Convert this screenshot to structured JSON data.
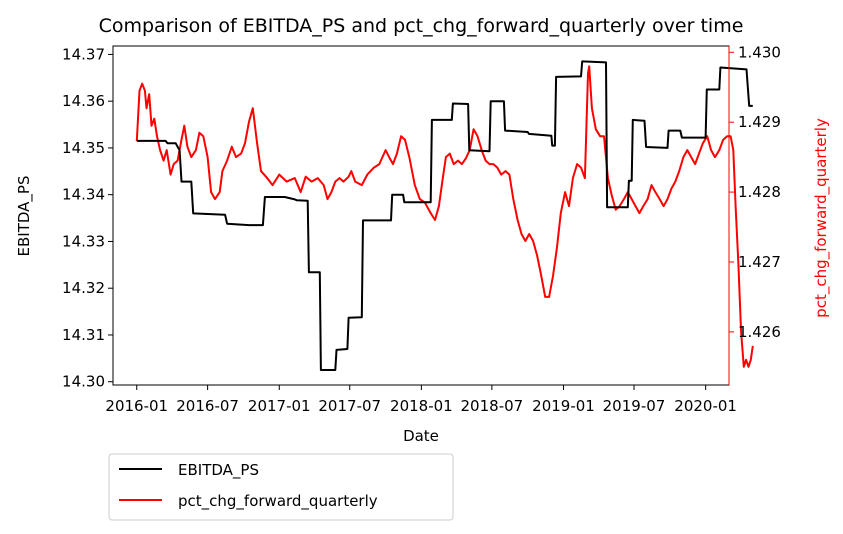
{
  "chart_data": {
    "type": "line",
    "title": "Comparison of EBITDA_PS and pct_chg_forward_quarterly over time",
    "xlabel": "Date",
    "ylabel_left": "EBITDA_PS",
    "ylabel_right": "pct_chg_forward_quarterly",
    "x_ticks": [
      "2016-01",
      "2016-07",
      "2017-01",
      "2017-07",
      "2018-01",
      "2018-07",
      "2019-01",
      "2019-07",
      "2020-01"
    ],
    "y_left_ticks": [
      "14.30",
      "14.31",
      "14.32",
      "14.33",
      "14.34",
      "14.35",
      "14.36",
      "14.37"
    ],
    "y_right_ticks": [
      "1.426",
      "1.427",
      "1.428",
      "1.429",
      "1.430"
    ],
    "x_range": [
      "2015-11-01",
      "2020-03-01"
    ],
    "y_left_range": [
      14.2993,
      14.3718
    ],
    "y_right_range": [
      1.42524,
      1.43009
    ],
    "legend_position": "below-left",
    "grid": false,
    "series": [
      {
        "name": "EBITDA_PS",
        "axis": "left",
        "color": "#000000",
        "points": [
          [
            "2016-01-01",
            14.3515
          ],
          [
            "2016-03-15",
            14.3515
          ],
          [
            "2016-03-20",
            14.351
          ],
          [
            "2016-04-10",
            14.351
          ],
          [
            "2016-04-20",
            14.3495
          ],
          [
            "2016-04-25",
            14.3428
          ],
          [
            "2016-05-20",
            14.3428
          ],
          [
            "2016-05-25",
            14.336
          ],
          [
            "2016-08-15",
            14.3357
          ],
          [
            "2016-08-20",
            14.3338
          ],
          [
            "2016-10-15",
            14.3335
          ],
          [
            "2016-11-20",
            14.3335
          ],
          [
            "2016-11-25",
            14.3395
          ],
          [
            "2017-01-15",
            14.3395
          ],
          [
            "2017-02-10",
            14.339
          ],
          [
            "2017-02-15",
            14.3388
          ],
          [
            "2017-03-15",
            14.3387
          ],
          [
            "2017-03-18",
            14.3234
          ],
          [
            "2017-04-15",
            14.3234
          ],
          [
            "2017-04-18",
            14.3025
          ],
          [
            "2017-05-25",
            14.3025
          ],
          [
            "2017-05-28",
            14.3068
          ],
          [
            "2017-06-25",
            14.307
          ],
          [
            "2017-06-28",
            14.3137
          ],
          [
            "2017-08-01",
            14.3138
          ],
          [
            "2017-08-04",
            14.3345
          ],
          [
            "2017-10-15",
            14.3345
          ],
          [
            "2017-10-18",
            14.34
          ],
          [
            "2017-11-15",
            14.34
          ],
          [
            "2017-11-18",
            14.3384
          ],
          [
            "2018-01-25",
            14.3384
          ],
          [
            "2018-01-28",
            14.356
          ],
          [
            "2018-03-20",
            14.356
          ],
          [
            "2018-03-23",
            14.3595
          ],
          [
            "2018-05-01",
            14.3594
          ],
          [
            "2018-05-04",
            14.3495
          ],
          [
            "2018-06-25",
            14.3493
          ],
          [
            "2018-06-28",
            14.36
          ],
          [
            "2018-08-01",
            14.36
          ],
          [
            "2018-08-04",
            14.3537
          ],
          [
            "2018-10-01",
            14.3534
          ],
          [
            "2018-10-04",
            14.353
          ],
          [
            "2018-12-01",
            14.3526
          ],
          [
            "2018-12-03",
            14.3505
          ],
          [
            "2018-12-10",
            14.3505
          ],
          [
            "2018-12-13",
            14.3652
          ],
          [
            "2019-02-15",
            14.3653
          ],
          [
            "2019-02-18",
            14.3685
          ],
          [
            "2019-04-20",
            14.3683
          ],
          [
            "2019-04-23",
            14.3373
          ],
          [
            "2019-06-15",
            14.3373
          ],
          [
            "2019-06-18",
            14.343
          ],
          [
            "2019-06-25",
            14.343
          ],
          [
            "2019-06-28",
            14.356
          ],
          [
            "2019-07-28",
            14.3558
          ],
          [
            "2019-08-01",
            14.3502
          ],
          [
            "2019-09-25",
            14.35
          ],
          [
            "2019-09-28",
            14.3537
          ],
          [
            "2019-10-28",
            14.3537
          ],
          [
            "2019-11-01",
            14.3522
          ],
          [
            "2020-01-01",
            14.3522
          ],
          [
            "2020-01-04",
            14.3625
          ],
          [
            "2020-02-05",
            14.3625
          ],
          [
            "2020-02-08",
            14.3672
          ],
          [
            "2020-04-15",
            14.3668
          ],
          [
            "2020-04-22",
            14.359
          ],
          [
            "2020-05-01",
            14.359
          ]
        ]
      },
      {
        "name": "pct_chg_forward_quarterly",
        "axis": "right",
        "color": "#ff0000",
        "points": [
          [
            "2016-01-01",
            1.42873
          ],
          [
            "2016-01-08",
            1.42945
          ],
          [
            "2016-01-15",
            1.42955
          ],
          [
            "2016-01-22",
            1.42945
          ],
          [
            "2016-01-26",
            1.4292
          ],
          [
            "2016-02-02",
            1.4294
          ],
          [
            "2016-02-08",
            1.42895
          ],
          [
            "2016-02-15",
            1.42905
          ],
          [
            "2016-02-22",
            1.4288
          ],
          [
            "2016-03-01",
            1.4286
          ],
          [
            "2016-03-10",
            1.42845
          ],
          [
            "2016-03-18",
            1.4286
          ],
          [
            "2016-03-28",
            1.42825
          ],
          [
            "2016-04-05",
            1.4284
          ],
          [
            "2016-04-15",
            1.42845
          ],
          [
            "2016-04-25",
            1.42875
          ],
          [
            "2016-05-02",
            1.42895
          ],
          [
            "2016-05-10",
            1.42865
          ],
          [
            "2016-05-20",
            1.4285
          ],
          [
            "2016-06-01",
            1.4286
          ],
          [
            "2016-06-10",
            1.42885
          ],
          [
            "2016-06-20",
            1.4288
          ],
          [
            "2016-07-01",
            1.4285
          ],
          [
            "2016-07-10",
            1.428
          ],
          [
            "2016-07-20",
            1.4279
          ],
          [
            "2016-08-01",
            1.428
          ],
          [
            "2016-08-08",
            1.4283
          ],
          [
            "2016-08-20",
            1.42845
          ],
          [
            "2016-09-01",
            1.42865
          ],
          [
            "2016-09-12",
            1.4285
          ],
          [
            "2016-09-25",
            1.42855
          ],
          [
            "2016-10-05",
            1.4287
          ],
          [
            "2016-10-15",
            1.429
          ],
          [
            "2016-10-25",
            1.4292
          ],
          [
            "2016-11-05",
            1.4287
          ],
          [
            "2016-11-15",
            1.4283
          ],
          [
            "2016-12-01",
            1.4282
          ],
          [
            "2016-12-15",
            1.4281
          ],
          [
            "2017-01-01",
            1.42825
          ],
          [
            "2017-01-20",
            1.42815
          ],
          [
            "2017-02-10",
            1.4282
          ],
          [
            "2017-02-25",
            1.428
          ],
          [
            "2017-03-10",
            1.42822
          ],
          [
            "2017-03-25",
            1.42815
          ],
          [
            "2017-04-10",
            1.4282
          ],
          [
            "2017-04-25",
            1.4281
          ],
          [
            "2017-05-05",
            1.4279
          ],
          [
            "2017-05-15",
            1.428
          ],
          [
            "2017-05-25",
            1.42815
          ],
          [
            "2017-06-05",
            1.4282
          ],
          [
            "2017-06-15",
            1.42815
          ],
          [
            "2017-06-28",
            1.42822
          ],
          [
            "2017-07-05",
            1.4283
          ],
          [
            "2017-07-15",
            1.42815
          ],
          [
            "2017-08-01",
            1.4281
          ],
          [
            "2017-08-15",
            1.42825
          ],
          [
            "2017-09-01",
            1.42835
          ],
          [
            "2017-09-15",
            1.4284
          ],
          [
            "2017-10-01",
            1.4286
          ],
          [
            "2017-10-10",
            1.4285
          ],
          [
            "2017-10-20",
            1.4284
          ],
          [
            "2017-10-30",
            1.42855
          ],
          [
            "2017-11-10",
            1.4288
          ],
          [
            "2017-11-20",
            1.42875
          ],
          [
            "2017-12-01",
            1.4285
          ],
          [
            "2017-12-15",
            1.4281
          ],
          [
            "2017-12-28",
            1.4279
          ],
          [
            "2018-01-10",
            1.42785
          ],
          [
            "2018-01-25",
            1.4277
          ],
          [
            "2018-02-05",
            1.4276
          ],
          [
            "2018-02-15",
            1.4278
          ],
          [
            "2018-02-25",
            1.4282
          ],
          [
            "2018-03-05",
            1.4285
          ],
          [
            "2018-03-15",
            1.42855
          ],
          [
            "2018-03-25",
            1.4284
          ],
          [
            "2018-04-05",
            1.42845
          ],
          [
            "2018-04-15",
            1.4284
          ],
          [
            "2018-04-25",
            1.42848
          ],
          [
            "2018-05-05",
            1.4286
          ],
          [
            "2018-05-15",
            1.4289
          ],
          [
            "2018-05-25",
            1.4288
          ],
          [
            "2018-06-05",
            1.4286
          ],
          [
            "2018-06-15",
            1.42845
          ],
          [
            "2018-06-25",
            1.4284
          ],
          [
            "2018-07-05",
            1.4284
          ],
          [
            "2018-07-15",
            1.42835
          ],
          [
            "2018-07-25",
            1.42825
          ],
          [
            "2018-08-05",
            1.4283
          ],
          [
            "2018-08-15",
            1.42825
          ],
          [
            "2018-08-25",
            1.4279
          ],
          [
            "2018-09-05",
            1.4276
          ],
          [
            "2018-09-15",
            1.4274
          ],
          [
            "2018-09-25",
            1.4273
          ],
          [
            "2018-10-05",
            1.4274
          ],
          [
            "2018-10-15",
            1.4273
          ],
          [
            "2018-10-25",
            1.4271
          ],
          [
            "2018-11-05",
            1.4268
          ],
          [
            "2018-11-15",
            1.4265
          ],
          [
            "2018-11-25",
            1.4265
          ],
          [
            "2018-12-05",
            1.4268
          ],
          [
            "2018-12-15",
            1.4272
          ],
          [
            "2018-12-25",
            1.4277
          ],
          [
            "2019-01-05",
            1.428
          ],
          [
            "2019-01-15",
            1.4278
          ],
          [
            "2019-01-25",
            1.4282
          ],
          [
            "2019-02-05",
            1.4284
          ],
          [
            "2019-02-15",
            1.42835
          ],
          [
            "2019-02-25",
            1.4282
          ],
          [
            "2019-03-05",
            1.4297
          ],
          [
            "2019-03-08",
            1.4298
          ],
          [
            "2019-03-15",
            1.4292
          ],
          [
            "2019-03-25",
            1.4289
          ],
          [
            "2019-04-05",
            1.4288
          ],
          [
            "2019-04-15",
            1.4288
          ],
          [
            "2019-04-25",
            1.4282
          ],
          [
            "2019-05-05",
            1.42795
          ],
          [
            "2019-05-15",
            1.42775
          ],
          [
            "2019-05-25",
            1.4278
          ],
          [
            "2019-06-05",
            1.4279
          ],
          [
            "2019-06-15",
            1.428
          ],
          [
            "2019-06-25",
            1.4279
          ],
          [
            "2019-07-05",
            1.4278
          ],
          [
            "2019-07-15",
            1.4277
          ],
          [
            "2019-07-25",
            1.4278
          ],
          [
            "2019-08-05",
            1.4279
          ],
          [
            "2019-08-15",
            1.4281
          ],
          [
            "2019-08-25",
            1.428
          ],
          [
            "2019-09-05",
            1.4279
          ],
          [
            "2019-09-15",
            1.4278
          ],
          [
            "2019-09-25",
            1.4279
          ],
          [
            "2019-10-05",
            1.42805
          ],
          [
            "2019-10-15",
            1.42815
          ],
          [
            "2019-10-25",
            1.4283
          ],
          [
            "2019-11-05",
            1.4285
          ],
          [
            "2019-11-15",
            1.4286
          ],
          [
            "2019-11-25",
            1.4285
          ],
          [
            "2019-12-05",
            1.4284
          ],
          [
            "2019-12-15",
            1.42855
          ],
          [
            "2019-12-25",
            1.4287
          ],
          [
            "2020-01-05",
            1.4288
          ],
          [
            "2020-01-15",
            1.4286
          ],
          [
            "2020-01-25",
            1.4285
          ],
          [
            "2020-02-05",
            1.4286
          ],
          [
            "2020-02-15",
            1.42875
          ],
          [
            "2020-02-25",
            1.4288
          ],
          [
            "2020-03-05",
            1.4288
          ],
          [
            "2020-03-12",
            1.4286
          ],
          [
            "2020-03-18",
            1.4278
          ],
          [
            "2020-03-25",
            1.427
          ],
          [
            "2020-04-01",
            1.426
          ],
          [
            "2020-04-08",
            1.4255
          ],
          [
            "2020-04-14",
            1.4256
          ],
          [
            "2020-04-20",
            1.4255
          ],
          [
            "2020-04-26",
            1.4256
          ],
          [
            "2020-05-01",
            1.4258
          ]
        ]
      }
    ]
  }
}
